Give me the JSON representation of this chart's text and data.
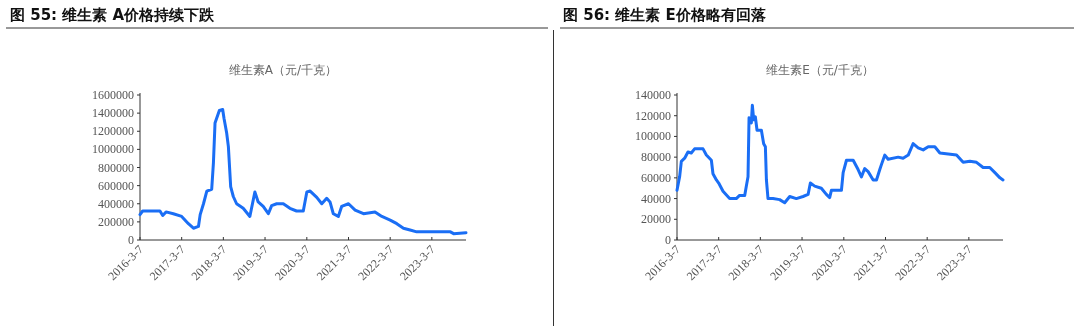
{
  "chart_data": [
    {
      "type": "line",
      "title": "图 55:  维生素 A价格持续下跌",
      "subtitle": "维生素A（元/千克）",
      "xlim": [
        "2016-03-07",
        "2023-12-31"
      ],
      "ylim": [
        0,
        1600000
      ],
      "xticks": [
        {
          "value": "2016-03-07",
          "label": "2016-3-7"
        },
        {
          "value": "2017-03-07",
          "label": "2017-3-7"
        },
        {
          "value": "2018-03-07",
          "label": "2018-3-7"
        },
        {
          "value": "2019-03-07",
          "label": "2019-3-7"
        },
        {
          "value": "2020-03-07",
          "label": "2020-3-7"
        },
        {
          "value": "2021-03-07",
          "label": "2021-3-7"
        },
        {
          "value": "2022-03-07",
          "label": "2022-3-7"
        },
        {
          "value": "2023-03-07",
          "label": "2023-3-7"
        }
      ],
      "yticks": [
        0,
        200000,
        400000,
        600000,
        800000,
        1000000,
        1200000,
        1400000,
        1600000
      ],
      "marker": "none",
      "line_style": "solid",
      "series": [
        {
          "color": "#1a6ef5",
          "x": [
            "2016-03-07",
            "2016-03-30",
            "2016-08-29",
            "2016-09-22",
            "2016-10-21",
            "2016-12-24",
            "2017-03-07",
            "2017-05-05",
            "2017-06-18",
            "2017-08-01",
            "2017-08-16",
            "2017-09-14",
            "2017-10-13",
            "2017-11-25",
            "2017-12-10",
            "2017-12-24",
            "2018-01-31",
            "2018-03-01",
            "2018-03-13",
            "2018-04-05",
            "2018-04-20",
            "2018-05-10",
            "2018-06-02",
            "2018-07-01",
            "2018-08-28",
            "2018-10-25",
            "2018-12-08",
            "2019-01-06",
            "2019-02-19",
            "2019-04-05",
            "2019-05-04",
            "2019-06-17",
            "2019-08-14",
            "2019-10-11",
            "2019-12-08",
            "2020-02-05",
            "2020-03-07",
            "2020-04-05",
            "2020-06-02",
            "2020-07-16",
            "2020-08-28",
            "2020-09-26",
            "2020-10-25",
            "2020-12-08",
            "2021-01-06",
            "2021-03-07",
            "2021-05-04",
            "2021-07-16",
            "2021-10-25",
            "2021-12-24",
            "2022-03-07",
            "2022-05-04",
            "2022-07-01",
            "2022-08-28",
            "2022-10-25",
            "2023-02-19",
            "2023-08-16",
            "2023-09-14",
            "2023-12-31"
          ],
          "values": [
            280000,
            320000,
            320000,
            270000,
            310000,
            290000,
            260000,
            180000,
            130000,
            150000,
            280000,
            400000,
            540000,
            560000,
            850000,
            1290000,
            1430000,
            1440000,
            1340000,
            1180000,
            1030000,
            590000,
            480000,
            400000,
            350000,
            260000,
            530000,
            420000,
            370000,
            290000,
            380000,
            400000,
            400000,
            350000,
            320000,
            320000,
            530000,
            540000,
            470000,
            400000,
            460000,
            420000,
            290000,
            260000,
            370000,
            400000,
            330000,
            290000,
            310000,
            260000,
            220000,
            180000,
            130000,
            110000,
            90000,
            90000,
            90000,
            70000,
            80000
          ]
        }
      ]
    },
    {
      "type": "line",
      "title": "图 56:  维生素 E价格略有回落",
      "subtitle": "维生素E（元/千克）",
      "xlim": [
        "2016-03-07",
        "2023-12-31"
      ],
      "ylim": [
        0,
        140000
      ],
      "xticks": [
        {
          "value": "2016-03-07",
          "label": "2016-3-7"
        },
        {
          "value": "2017-03-07",
          "label": "2017-3-7"
        },
        {
          "value": "2018-03-07",
          "label": "2018-3-7"
        },
        {
          "value": "2019-03-07",
          "label": "2019-3-7"
        },
        {
          "value": "2020-03-07",
          "label": "2020-3-7"
        },
        {
          "value": "2021-03-07",
          "label": "2021-3-7"
        },
        {
          "value": "2022-03-07",
          "label": "2022-3-7"
        },
        {
          "value": "2023-03-07",
          "label": "2023-3-7"
        }
      ],
      "yticks": [
        0,
        20000,
        40000,
        60000,
        80000,
        100000,
        120000,
        140000
      ],
      "marker": "none",
      "line_style": "solid",
      "series": [
        {
          "color": "#1a6ef5",
          "x": [
            "2016-03-07",
            "2016-03-30",
            "2016-04-14",
            "2016-05-13",
            "2016-06-11",
            "2016-07-10",
            "2016-08-08",
            "2016-10-21",
            "2016-11-19",
            "2017-01-02",
            "2017-01-16",
            "2017-02-15",
            "2017-03-07",
            "2017-04-14",
            "2017-06-11",
            "2017-08-08",
            "2017-09-06",
            "2017-10-21",
            "2017-11-04",
            "2017-11-19",
            "2017-11-28",
            "2017-12-18",
            "2017-12-27",
            "2018-01-08",
            "2018-01-22",
            "2018-02-06",
            "2018-03-16",
            "2018-04-05",
            "2018-04-20",
            "2018-04-29",
            "2018-05-13",
            "2018-06-26",
            "2018-08-23",
            "2018-10-06",
            "2018-11-19",
            "2019-01-16",
            "2019-03-16",
            "2019-04-29",
            "2019-05-19",
            "2019-06-26",
            "2019-08-23",
            "2019-10-06",
            "2019-11-04",
            "2019-11-19",
            "2020-02-15",
            "2020-03-01",
            "2020-03-30",
            "2020-05-28",
            "2020-07-10",
            "2020-08-08",
            "2020-09-06",
            "2020-10-06",
            "2020-11-19",
            "2020-12-18",
            "2021-01-16",
            "2021-01-31",
            "2021-03-01",
            "2021-03-30",
            "2021-06-26",
            "2021-08-08",
            "2021-09-22",
            "2021-11-04",
            "2021-12-18",
            "2022-01-31",
            "2022-03-16",
            "2022-05-13",
            "2022-06-26",
            "2022-11-19",
            "2023-01-16",
            "2023-03-16",
            "2023-05-13",
            "2023-07-10",
            "2023-09-06",
            "2023-10-21",
            "2023-12-04",
            "2023-12-31"
          ],
          "values": [
            48000,
            61000,
            76000,
            79000,
            85000,
            84000,
            88000,
            88000,
            82000,
            77000,
            64000,
            58000,
            55000,
            47000,
            40000,
            40000,
            43000,
            43000,
            52000,
            61000,
            118000,
            113000,
            130000,
            116000,
            119000,
            106000,
            106000,
            93000,
            90000,
            58000,
            40000,
            40000,
            39000,
            36000,
            42000,
            40000,
            42000,
            44000,
            55000,
            52000,
            50000,
            44000,
            41000,
            48000,
            48000,
            65000,
            77000,
            77000,
            68000,
            61000,
            69000,
            66000,
            58000,
            58000,
            68000,
            73000,
            82000,
            78000,
            80000,
            79000,
            82000,
            93000,
            89000,
            87000,
            90000,
            90000,
            84000,
            82000,
            75000,
            76000,
            75000,
            70000,
            70000,
            65000,
            60000,
            58000
          ]
        }
      ]
    }
  ]
}
